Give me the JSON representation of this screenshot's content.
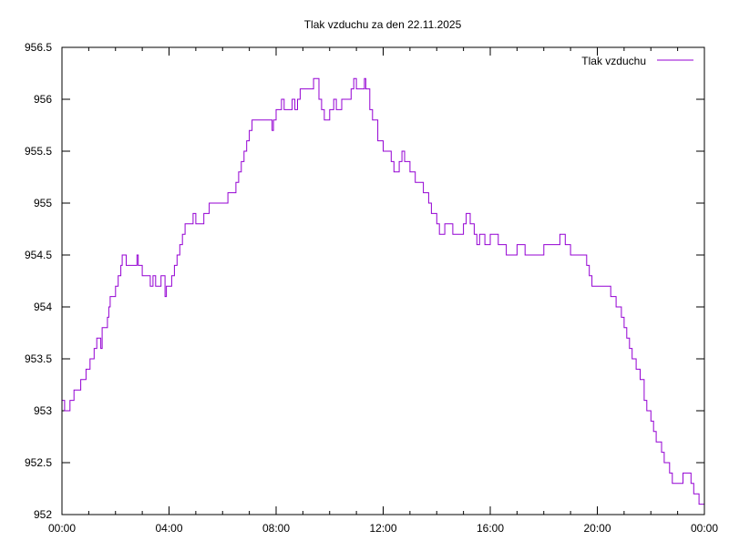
{
  "chart_data": {
    "type": "line",
    "title": "Tlak vzduchu za den 22.11.2025",
    "xlabel": "",
    "ylabel": "",
    "xlim": [
      "00:00",
      "24:00"
    ],
    "ylim": [
      952,
      956.5
    ],
    "x_ticks": [
      "00:00",
      "04:00",
      "08:00",
      "12:00",
      "16:00",
      "20:00",
      "00:00"
    ],
    "y_ticks": [
      "952",
      "952.5",
      "953",
      "953.5",
      "954",
      "954.5",
      "955",
      "955.5",
      "956",
      "956.5"
    ],
    "grid": false,
    "legend_position": "top-right",
    "series": [
      {
        "name": "Tlak vzduchu",
        "color": "#9400d3",
        "style": "steps",
        "x": [
          "00:00",
          "00:06",
          "00:18",
          "00:27",
          "00:42",
          "00:54",
          "01:03",
          "01:12",
          "01:18",
          "01:27",
          "01:30",
          "01:42",
          "01:45",
          "01:48",
          "02:00",
          "02:06",
          "02:12",
          "02:15",
          "02:24",
          "02:48",
          "02:51",
          "03:00",
          "03:18",
          "03:24",
          "03:30",
          "03:42",
          "03:51",
          "03:54",
          "04:06",
          "04:12",
          "04:18",
          "04:24",
          "04:30",
          "04:36",
          "04:54",
          "05:00",
          "05:18",
          "05:30",
          "06:00",
          "06:12",
          "06:30",
          "06:36",
          "06:42",
          "06:48",
          "06:54",
          "07:00",
          "07:06",
          "07:51",
          "07:54",
          "08:00",
          "08:12",
          "08:18",
          "08:36",
          "08:42",
          "08:48",
          "08:54",
          "09:24",
          "09:36",
          "09:42",
          "09:48",
          "10:00",
          "10:09",
          "10:15",
          "10:27",
          "10:48",
          "10:54",
          "11:00",
          "11:18",
          "11:21",
          "11:30",
          "11:36",
          "11:48",
          "12:00",
          "12:18",
          "12:24",
          "12:36",
          "12:42",
          "12:48",
          "13:00",
          "13:12",
          "13:30",
          "13:42",
          "13:48",
          "14:00",
          "14:06",
          "14:18",
          "14:36",
          "15:00",
          "15:06",
          "15:15",
          "15:24",
          "15:30",
          "15:36",
          "15:48",
          "16:00",
          "16:18",
          "16:36",
          "17:00",
          "17:18",
          "18:00",
          "18:36",
          "18:48",
          "19:00",
          "19:30",
          "19:36",
          "19:42",
          "19:48",
          "20:30",
          "20:42",
          "20:54",
          "21:00",
          "21:06",
          "21:12",
          "21:18",
          "21:27",
          "21:36",
          "21:45",
          "21:51",
          "22:00",
          "22:06",
          "22:12",
          "22:24",
          "22:30",
          "22:42",
          "22:48",
          "23:12",
          "23:30",
          "23:36",
          "23:48",
          "24:00"
        ],
        "y": [
          953.1,
          953.0,
          953.1,
          953.2,
          953.3,
          953.4,
          953.5,
          953.6,
          953.7,
          953.6,
          953.8,
          953.9,
          954.0,
          954.1,
          954.2,
          954.3,
          954.4,
          954.5,
          954.4,
          954.5,
          954.4,
          954.3,
          954.2,
          954.3,
          954.2,
          954.3,
          954.1,
          954.2,
          954.3,
          954.4,
          954.5,
          954.6,
          954.7,
          954.8,
          954.9,
          954.8,
          954.9,
          955.0,
          955.0,
          955.1,
          955.2,
          955.3,
          955.4,
          955.5,
          955.6,
          955.7,
          955.8,
          955.7,
          955.8,
          955.9,
          956.0,
          955.9,
          956.0,
          955.9,
          956.0,
          956.1,
          956.2,
          956.0,
          955.9,
          955.8,
          955.9,
          956.0,
          955.9,
          956.0,
          956.1,
          956.2,
          956.1,
          956.2,
          956.1,
          955.9,
          955.8,
          955.6,
          955.5,
          955.4,
          955.3,
          955.4,
          955.5,
          955.4,
          955.3,
          955.2,
          955.1,
          955.0,
          954.9,
          954.8,
          954.7,
          954.8,
          954.7,
          954.8,
          954.9,
          954.8,
          954.7,
          954.6,
          954.7,
          954.6,
          954.7,
          954.6,
          954.5,
          954.6,
          954.5,
          954.6,
          954.7,
          954.6,
          954.5,
          954.5,
          954.4,
          954.3,
          954.2,
          954.1,
          954.0,
          953.9,
          953.8,
          953.7,
          953.6,
          953.5,
          953.4,
          953.3,
          953.1,
          953.0,
          952.9,
          952.8,
          952.7,
          952.6,
          952.5,
          952.4,
          952.3,
          952.4,
          952.3,
          952.2,
          952.1,
          952.1
        ]
      }
    ]
  }
}
